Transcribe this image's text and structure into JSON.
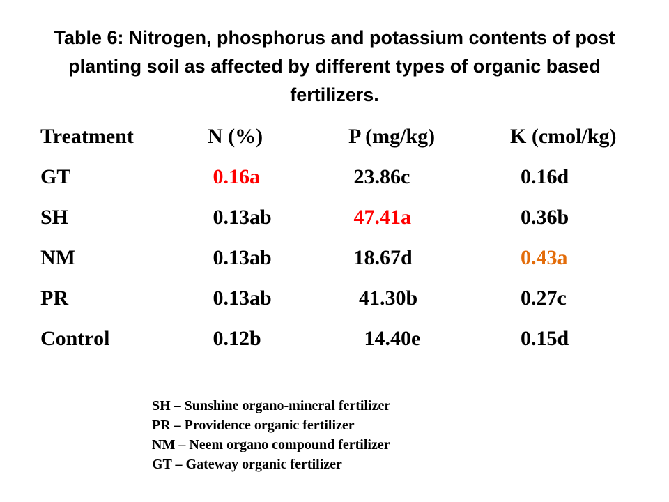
{
  "title": {
    "line1": "Table 6: Nitrogen, phosphorus and potassium contents of post",
    "line2": "planting soil as affected by different types of organic based",
    "line3": "fertilizers."
  },
  "table": {
    "headers": [
      "Treatment",
      "N (%)",
      "P (mg/kg)",
      "K (cmol/kg)"
    ],
    "rows": [
      {
        "treatment": "GT",
        "n": " 0.16a",
        "p": " 23.86c",
        "k": "  0.16d"
      },
      {
        "treatment": "SH",
        "n": " 0.13ab",
        "p": " 47.41a",
        "k": "  0.36b"
      },
      {
        "treatment": "NM",
        "n": " 0.13ab",
        "p": " 18.67d",
        "k": "  0.43a"
      },
      {
        "treatment": "PR",
        "n": " 0.13ab",
        "p": "  41.30b",
        "k": "  0.27c"
      },
      {
        "treatment": "Control",
        "n": " 0.12b",
        "p": "   14.40e",
        "k": "  0.15d"
      }
    ]
  },
  "colors": {
    "text": "#000000",
    "highlight_red": "#ff0000",
    "highlight_orange": "#e36c09"
  },
  "legend": [
    "SH – Sunshine organo-mineral fertilizer",
    "PR – Providence organic fertilizer",
    "NM – Neem organo compound fertilizer",
    "GT – Gateway organic fertilizer"
  ]
}
